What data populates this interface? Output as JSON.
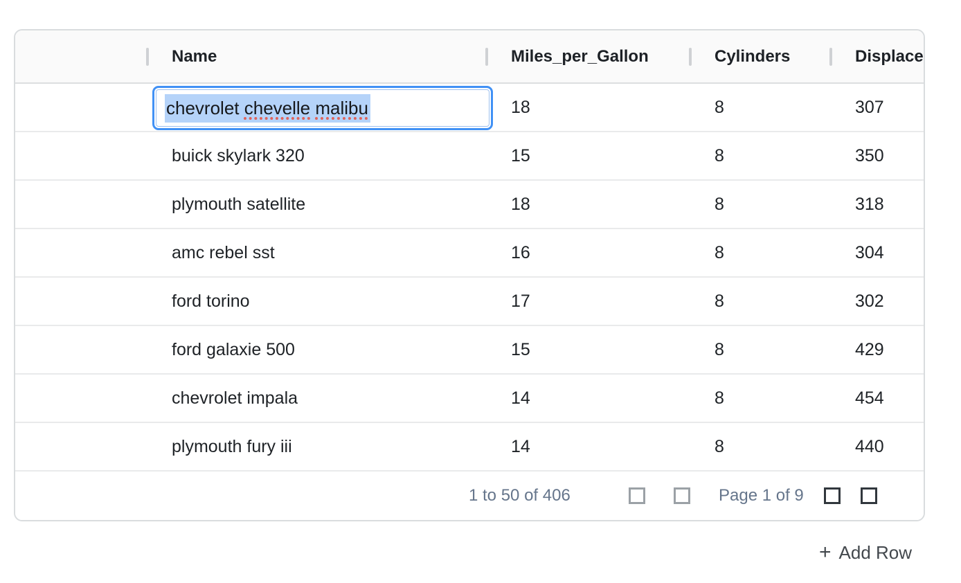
{
  "grid": {
    "columns": [
      {
        "label": ""
      },
      {
        "label": "Name"
      },
      {
        "label": "Miles_per_Gallon"
      },
      {
        "label": "Cylinders"
      },
      {
        "label": "Displacement"
      }
    ],
    "rows": [
      {
        "name": "chevrolet chevelle malibu",
        "miles_per_gallon": "18",
        "cylinders": "8",
        "displacement": "307"
      },
      {
        "name": "buick skylark 320",
        "miles_per_gallon": "15",
        "cylinders": "8",
        "displacement": "350"
      },
      {
        "name": "plymouth satellite",
        "miles_per_gallon": "18",
        "cylinders": "8",
        "displacement": "318"
      },
      {
        "name": "amc rebel sst",
        "miles_per_gallon": "16",
        "cylinders": "8",
        "displacement": "304"
      },
      {
        "name": "ford torino",
        "miles_per_gallon": "17",
        "cylinders": "8",
        "displacement": "302"
      },
      {
        "name": "ford galaxie 500",
        "miles_per_gallon": "15",
        "cylinders": "8",
        "displacement": "429"
      },
      {
        "name": "chevrolet impala",
        "miles_per_gallon": "14",
        "cylinders": "8",
        "displacement": "454"
      },
      {
        "name": "plymouth fury iii",
        "miles_per_gallon": "14",
        "cylinders": "8",
        "displacement": "440"
      }
    ],
    "editor": {
      "value": "chevrolet chevelle malibu",
      "segments": {
        "prefix": "chevrolet ",
        "misspelled_1": "chevelle",
        "separator": " ",
        "misspelled_2": "malibu"
      }
    }
  },
  "pagination": {
    "range_label": "1 to 50 of 406",
    "page_label": "Page 1 of 9",
    "buttons": [
      "first-page",
      "previous-page",
      "next-page",
      "last-page"
    ]
  },
  "actions": {
    "add_row": {
      "icon": "+",
      "label": "Add Row"
    }
  },
  "colors": {
    "editor_focus_border": "#4191f5",
    "text_selection": "#b5d3f9",
    "spellcheck_underline": "#e0635a",
    "pagination_text": "#65758b",
    "header_background": "#fafafa",
    "row_border": "#e9eaeb"
  }
}
